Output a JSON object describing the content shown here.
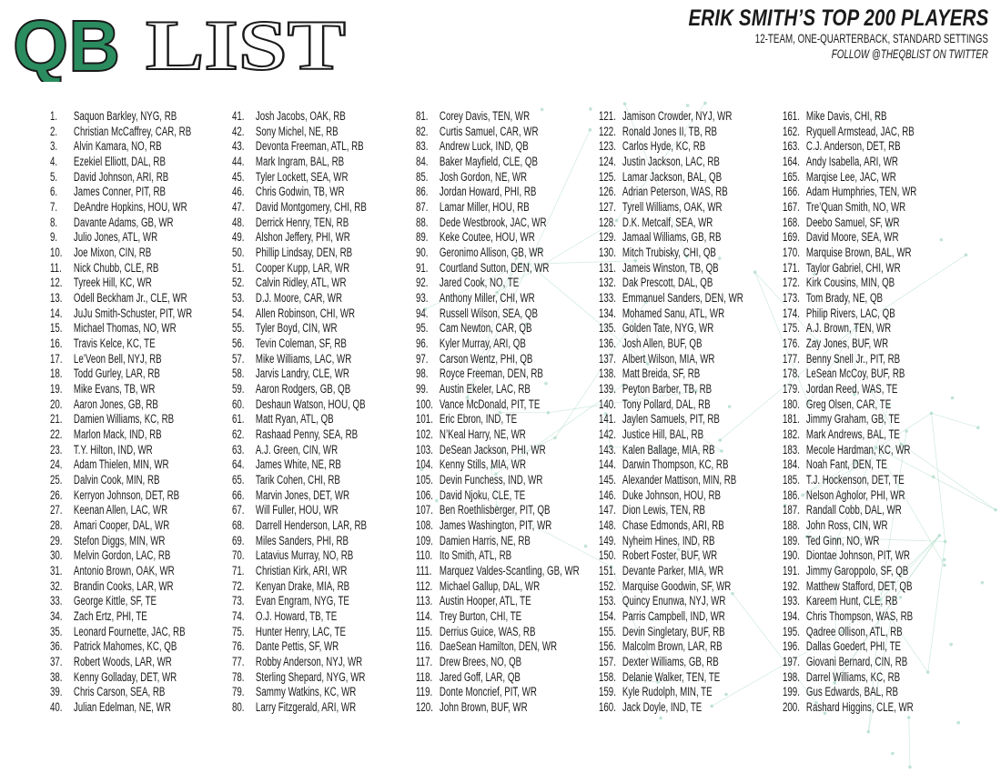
{
  "logo": {
    "text_green": "QB",
    "text_outline": "LIST",
    "green": "#2a8c5f"
  },
  "header": {
    "title": "ERIK SMITH’S TOP 200 PLAYERS",
    "subtitle": "12-TEAM, ONE-QUARTERBACK, STANDARD SETTINGS",
    "follow": "FOLLOW @THEQBLIST ON TWITTER"
  },
  "players": [
    "Saquon Barkley, NYG, RB",
    "Christian McCaffrey, CAR, RB",
    "Alvin Kamara, NO, RB",
    "Ezekiel Elliott, DAL, RB",
    "David Johnson, ARI, RB",
    "James Conner, PIT, RB",
    "DeAndre Hopkins, HOU, WR",
    "Davante Adams, GB, WR",
    "Julio Jones, ATL, WR",
    "Joe Mixon, CIN, RB",
    "Nick Chubb, CLE, RB",
    "Tyreek Hill, KC, WR",
    "Odell Beckham Jr., CLE, WR",
    "JuJu Smith-Schuster, PIT, WR",
    "Michael Thomas, NO, WR",
    "Travis Kelce, KC, TE",
    "Le’Veon Bell, NYJ, RB",
    "Todd Gurley, LAR, RB",
    "Mike Evans, TB, WR",
    "Aaron Jones, GB, RB",
    "Damien Williams, KC, RB",
    "Marlon Mack, IND, RB",
    "T.Y. Hilton, IND, WR",
    "Adam Thielen, MIN, WR",
    "Dalvin Cook, MIN, RB",
    "Kerryon Johnson, DET, RB",
    "Keenan Allen, LAC, WR",
    "Amari Cooper, DAL, WR",
    "Stefon Diggs, MIN, WR",
    "Melvin Gordon, LAC, RB",
    "Antonio Brown, OAK, WR",
    "Brandin Cooks, LAR, WR",
    "George Kittle, SF, TE",
    "Zach Ertz, PHI, TE",
    "Leonard Fournette, JAC, RB",
    "Patrick Mahomes, KC, QB",
    "Robert Woods, LAR, WR",
    "Kenny Golladay, DET, WR",
    "Chris Carson, SEA, RB",
    "Julian Edelman, NE, WR",
    "Josh Jacobs, OAK, RB",
    "Sony Michel, NE, RB",
    "Devonta Freeman, ATL, RB",
    "Mark Ingram, BAL, RB",
    "Tyler Lockett, SEA, WR",
    "Chris Godwin, TB, WR",
    "David Montgomery, CHI, RB",
    "Derrick Henry, TEN, RB",
    "Alshon Jeffery, PHI, WR",
    "Phillip Lindsay, DEN, RB",
    "Cooper Kupp, LAR, WR",
    "Calvin Ridley, ATL, WR",
    "D.J. Moore, CAR, WR",
    "Allen Robinson, CHI, WR",
    "Tyler Boyd, CIN, WR",
    "Tevin Coleman, SF, RB",
    "Mike Williams, LAC, WR",
    "Jarvis Landry, CLE, WR",
    "Aaron Rodgers, GB, QB",
    "Deshaun Watson, HOU, QB",
    "Matt Ryan, ATL, QB",
    "Rashaad Penny, SEA, RB",
    "A.J. Green, CIN, WR",
    "James White, NE, RB",
    "Tarik Cohen, CHI, RB",
    "Marvin Jones, DET, WR",
    "Will Fuller, HOU, WR",
    "Darrell Henderson, LAR, RB",
    "Miles Sanders, PHI, RB",
    "Latavius Murray, NO, RB",
    "Christian Kirk, ARI, WR",
    "Kenyan Drake, MIA, RB",
    "Evan Engram, NYG, TE",
    "O.J. Howard, TB, TE",
    "Hunter Henry, LAC, TE",
    "Dante Pettis, SF, WR",
    "Robby Anderson, NYJ, WR",
    "Sterling Shepard, NYG, WR",
    "Sammy Watkins, KC, WR",
    "Larry Fitzgerald, ARI, WR",
    "Corey Davis, TEN, WR",
    "Curtis Samuel, CAR, WR",
    "Andrew Luck, IND, QB",
    "Baker Mayfield, CLE, QB",
    "Josh Gordon, NE, WR",
    "Jordan Howard, PHI, RB",
    "Lamar Miller, HOU, RB",
    "Dede Westbrook, JAC, WR",
    "Keke Coutee, HOU, WR",
    "Geronimo Allison, GB, WR",
    "Courtland Sutton, DEN, WR",
    "Jared Cook, NO, TE",
    "Anthony Miller, CHI, WR",
    "Russell Wilson, SEA, QB",
    "Cam Newton, CAR, QB",
    "Kyler Murray, ARI, QB",
    "Carson Wentz, PHI, QB",
    "Royce Freeman, DEN, RB",
    "Austin Ekeler, LAC, RB",
    "Vance McDonald, PIT, TE",
    "Eric Ebron, IND, TE",
    "N’Keal Harry, NE, WR",
    "DeSean Jackson, PHI, WR",
    "Kenny Stills, MIA, WR",
    "Devin Funchess, IND, WR",
    "David Njoku, CLE, TE",
    "Ben Roethlisberger, PIT, QB",
    "James Washington, PIT, WR",
    "Damien Harris, NE, RB",
    "Ito Smith, ATL, RB",
    "Marquez Valdes-Scantling, GB, WR",
    "Michael Gallup, DAL, WR",
    "Austin Hooper, ATL, TE",
    "Trey Burton, CHI, TE",
    "Derrius Guice, WAS, RB",
    "DaeSean Hamilton, DEN, WR",
    "Drew Brees, NO, QB",
    "Jared Goff, LAR, QB",
    "Donte Moncrief, PIT, WR",
    "John Brown, BUF, WR",
    "Jamison Crowder, NYJ, WR",
    "Ronald Jones II, TB, RB",
    "Carlos Hyde, KC, RB",
    "Justin Jackson, LAC, RB",
    "Lamar Jackson, BAL, QB",
    "Adrian Peterson, WAS, RB",
    "Tyrell Williams, OAK, WR",
    "D.K. Metcalf, SEA, WR",
    "Jamaal Williams, GB, RB",
    "Mitch Trubisky, CHI, QB",
    "Jameis Winston, TB, QB",
    "Dak Prescott, DAL, QB",
    "Emmanuel Sanders, DEN, WR",
    "Mohamed Sanu, ATL, WR",
    "Golden Tate, NYG, WR",
    "Josh Allen, BUF, QB",
    "Albert Wilson, MIA, WR",
    "Matt Breida, SF, RB",
    "Peyton Barber, TB, RB",
    "Tony Pollard, DAL, RB",
    "Jaylen Samuels, PIT, RB",
    "Justice Hill, BAL, RB",
    "Kalen Ballage, MIA, RB",
    "Darwin Thompson, KC, RB",
    "Alexander Mattison, MIN, RB",
    "Duke Johnson, HOU, RB",
    "Dion Lewis, TEN, RB",
    "Chase Edmonds, ARI, RB",
    "Nyheim Hines, IND, RB",
    "Robert Foster, BUF, WR",
    "Devante Parker, MIA, WR",
    "Marquise Goodwin, SF, WR",
    "Quincy Enunwa, NYJ, WR",
    "Parris Campbell, IND, WR",
    "Devin Singletary, BUF, RB",
    "Malcolm Brown, LAR, RB",
    "Dexter Williams, GB, RB",
    "Delanie Walker, TEN, TE",
    "Kyle Rudolph, MIN, TE",
    "Jack Doyle, IND, TE",
    "Mike Davis, CHI, RB",
    "Ryquell Armstead, JAC, RB",
    "C.J. Anderson, DET, RB",
    "Andy Isabella, ARI, WR",
    "Marqise Lee, JAC, WR",
    "Adam Humphries, TEN, WR",
    "Tre’Quan Smith, NO, WR",
    "Deebo Samuel, SF, WR",
    "David Moore, SEA, WR",
    "Marquise Brown, BAL, WR",
    "Taylor Gabriel, CHI, WR",
    "Kirk Cousins, MIN, QB",
    "Tom Brady, NE, QB",
    "Philip Rivers, LAC, QB",
    "A.J. Brown, TEN, WR",
    "Zay Jones, BUF, WR",
    "Benny Snell Jr., PIT, RB",
    "LeSean McCoy, BUF, RB",
    "Jordan Reed, WAS, TE",
    "Greg Olsen, CAR, TE",
    "Jimmy Graham, GB, TE",
    "Mark Andrews, BAL, TE",
    "Mecole Hardman, KC, WR",
    "Noah Fant, DEN, TE",
    "T.J. Hockenson, DET, TE",
    "Nelson Agholor, PHI, WR",
    "Randall Cobb, DAL, WR",
    "John Ross, CIN, WR",
    "Ted Ginn, NO, WR",
    "Diontae Johnson, PIT, WR",
    "Jimmy Garoppolo, SF, QB",
    "Matthew Stafford, DET, QB",
    "Kareem Hunt, CLE, RB",
    "Chris Thompson, WAS, RB",
    "Qadree Ollison, ATL, RB",
    "Dallas Goedert, PHI, TE",
    "Giovani Bernard, CIN, RB",
    "Darrel Williams, KC, RB",
    "Gus Edwards, BAL, RB",
    "Rashard Higgins, CLE, WR"
  ],
  "ranks": []
}
